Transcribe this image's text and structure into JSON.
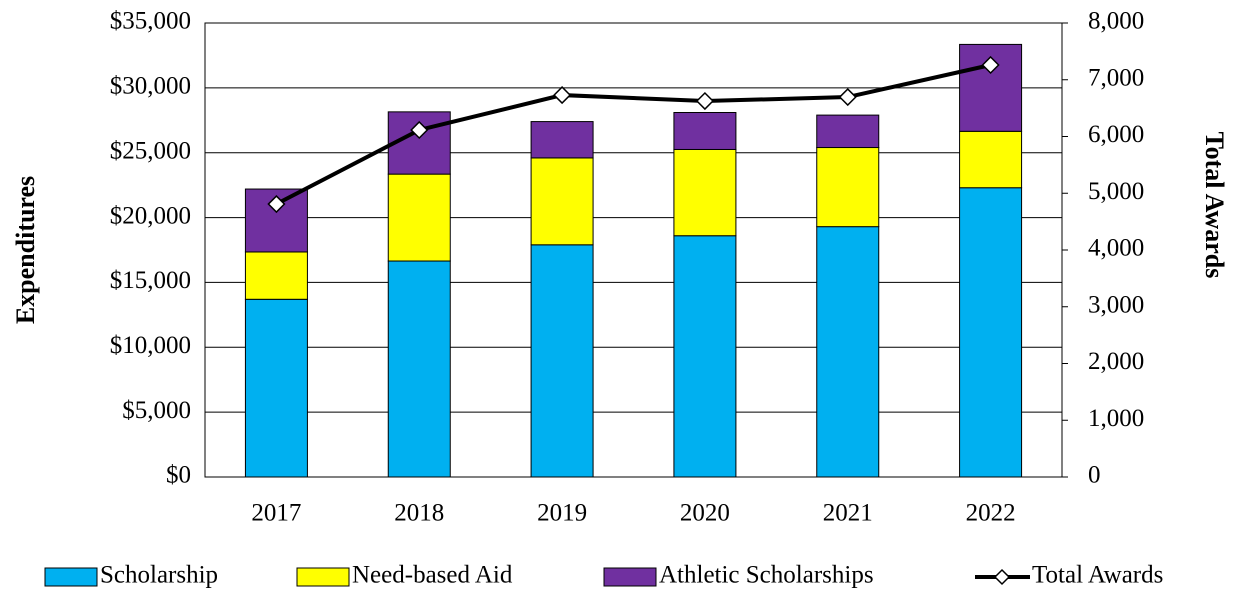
{
  "chart_data": {
    "type": "stacked_bar_line",
    "categories": [
      "2017",
      "2018",
      "2019",
      "2020",
      "2021",
      "2022"
    ],
    "y_label": "Expenditures",
    "y2_label": "Total Awards",
    "ylim": [
      0,
      35000
    ],
    "yticks": [
      {
        "value": 0,
        "label": "$0"
      },
      {
        "value": 5000,
        "label": "$5,000"
      },
      {
        "value": 10000,
        "label": "$10,000"
      },
      {
        "value": 15000,
        "label": "$15,000"
      },
      {
        "value": 20000,
        "label": "$20,000"
      },
      {
        "value": 25000,
        "label": "$25,000"
      },
      {
        "value": 30000,
        "label": "$30,000"
      },
      {
        "value": 35000,
        "label": "$35,000"
      }
    ],
    "y2lim": [
      0,
      8000
    ],
    "y2ticks": [
      0,
      {
        "value": 1000,
        "label": "1,000"
      },
      {
        "value": 2000,
        "label": "2,000"
      },
      {
        "value": 3000,
        "label": "3,000"
      },
      {
        "value": 4000,
        "label": "4,000"
      },
      {
        "value": 5000,
        "label": "5,000"
      },
      {
        "value": 6000,
        "label": "6,000"
      },
      {
        "value": 7000,
        "label": "7,000"
      },
      {
        "value": 8000,
        "label": "8,000"
      }
    ],
    "grid": true,
    "legend": "bottom",
    "series": [
      {
        "name": "Scholarship",
        "color": "#00b0f0",
        "values": [
          13700,
          16650,
          17900,
          18600,
          19300,
          22300
        ]
      },
      {
        "name": "Need-based Aid",
        "color": "#ffff00",
        "values": [
          3650,
          6700,
          6700,
          6650,
          6100,
          4350
        ]
      },
      {
        "name": "Athletic Scholarships",
        "color": "#7030a0",
        "values": [
          4850,
          4800,
          2800,
          2850,
          2500,
          6700
        ]
      },
      {
        "name": "Total Awards",
        "color": "#000000",
        "axis": "y2",
        "values": [
          4810,
          6115,
          6730,
          6625,
          6695,
          7260
        ]
      }
    ]
  }
}
